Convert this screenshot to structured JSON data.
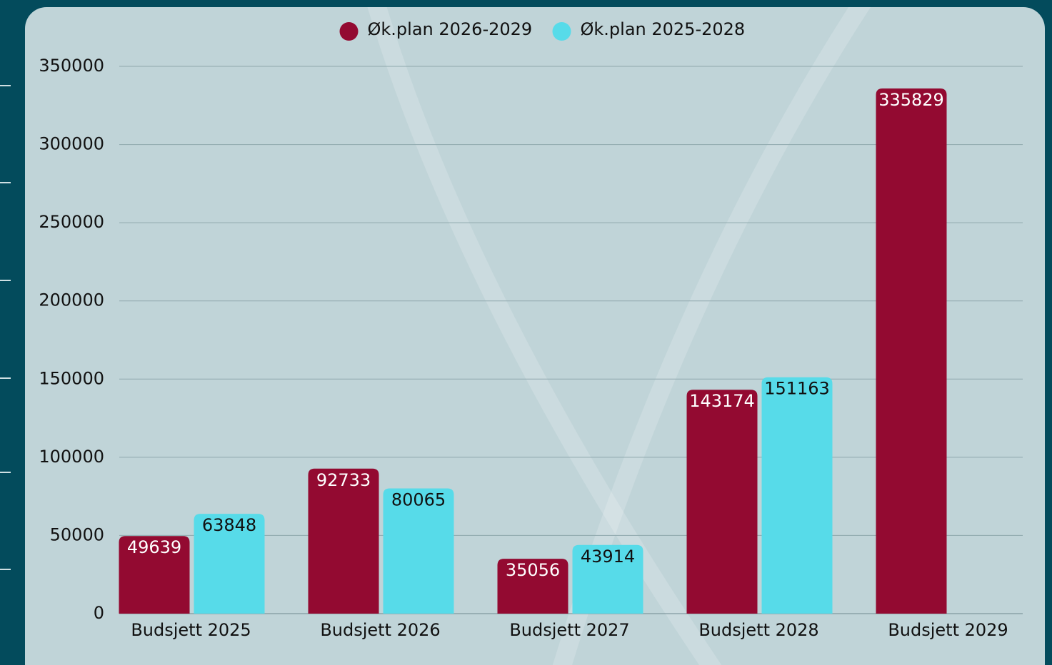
{
  "chart_data": {
    "type": "bar",
    "categories": [
      "Budsjett 2025",
      "Budsjett 2026",
      "Budsjett 2027",
      "Budsjett 2028",
      "Budsjett 2029"
    ],
    "series": [
      {
        "name": "Øk.plan 2026-2029",
        "color": "#930a31",
        "values": [
          49639,
          92733,
          35056,
          143174,
          335829
        ]
      },
      {
        "name": "Øk.plan 2025-2028",
        "color": "#57dbe9",
        "values": [
          63848,
          80065,
          43914,
          151163,
          null
        ]
      }
    ],
    "ylim": [
      0,
      350000
    ],
    "yticks": [
      0,
      50000,
      100000,
      150000,
      200000,
      250000,
      300000,
      350000
    ],
    "grid": true,
    "legend": "top"
  }
}
